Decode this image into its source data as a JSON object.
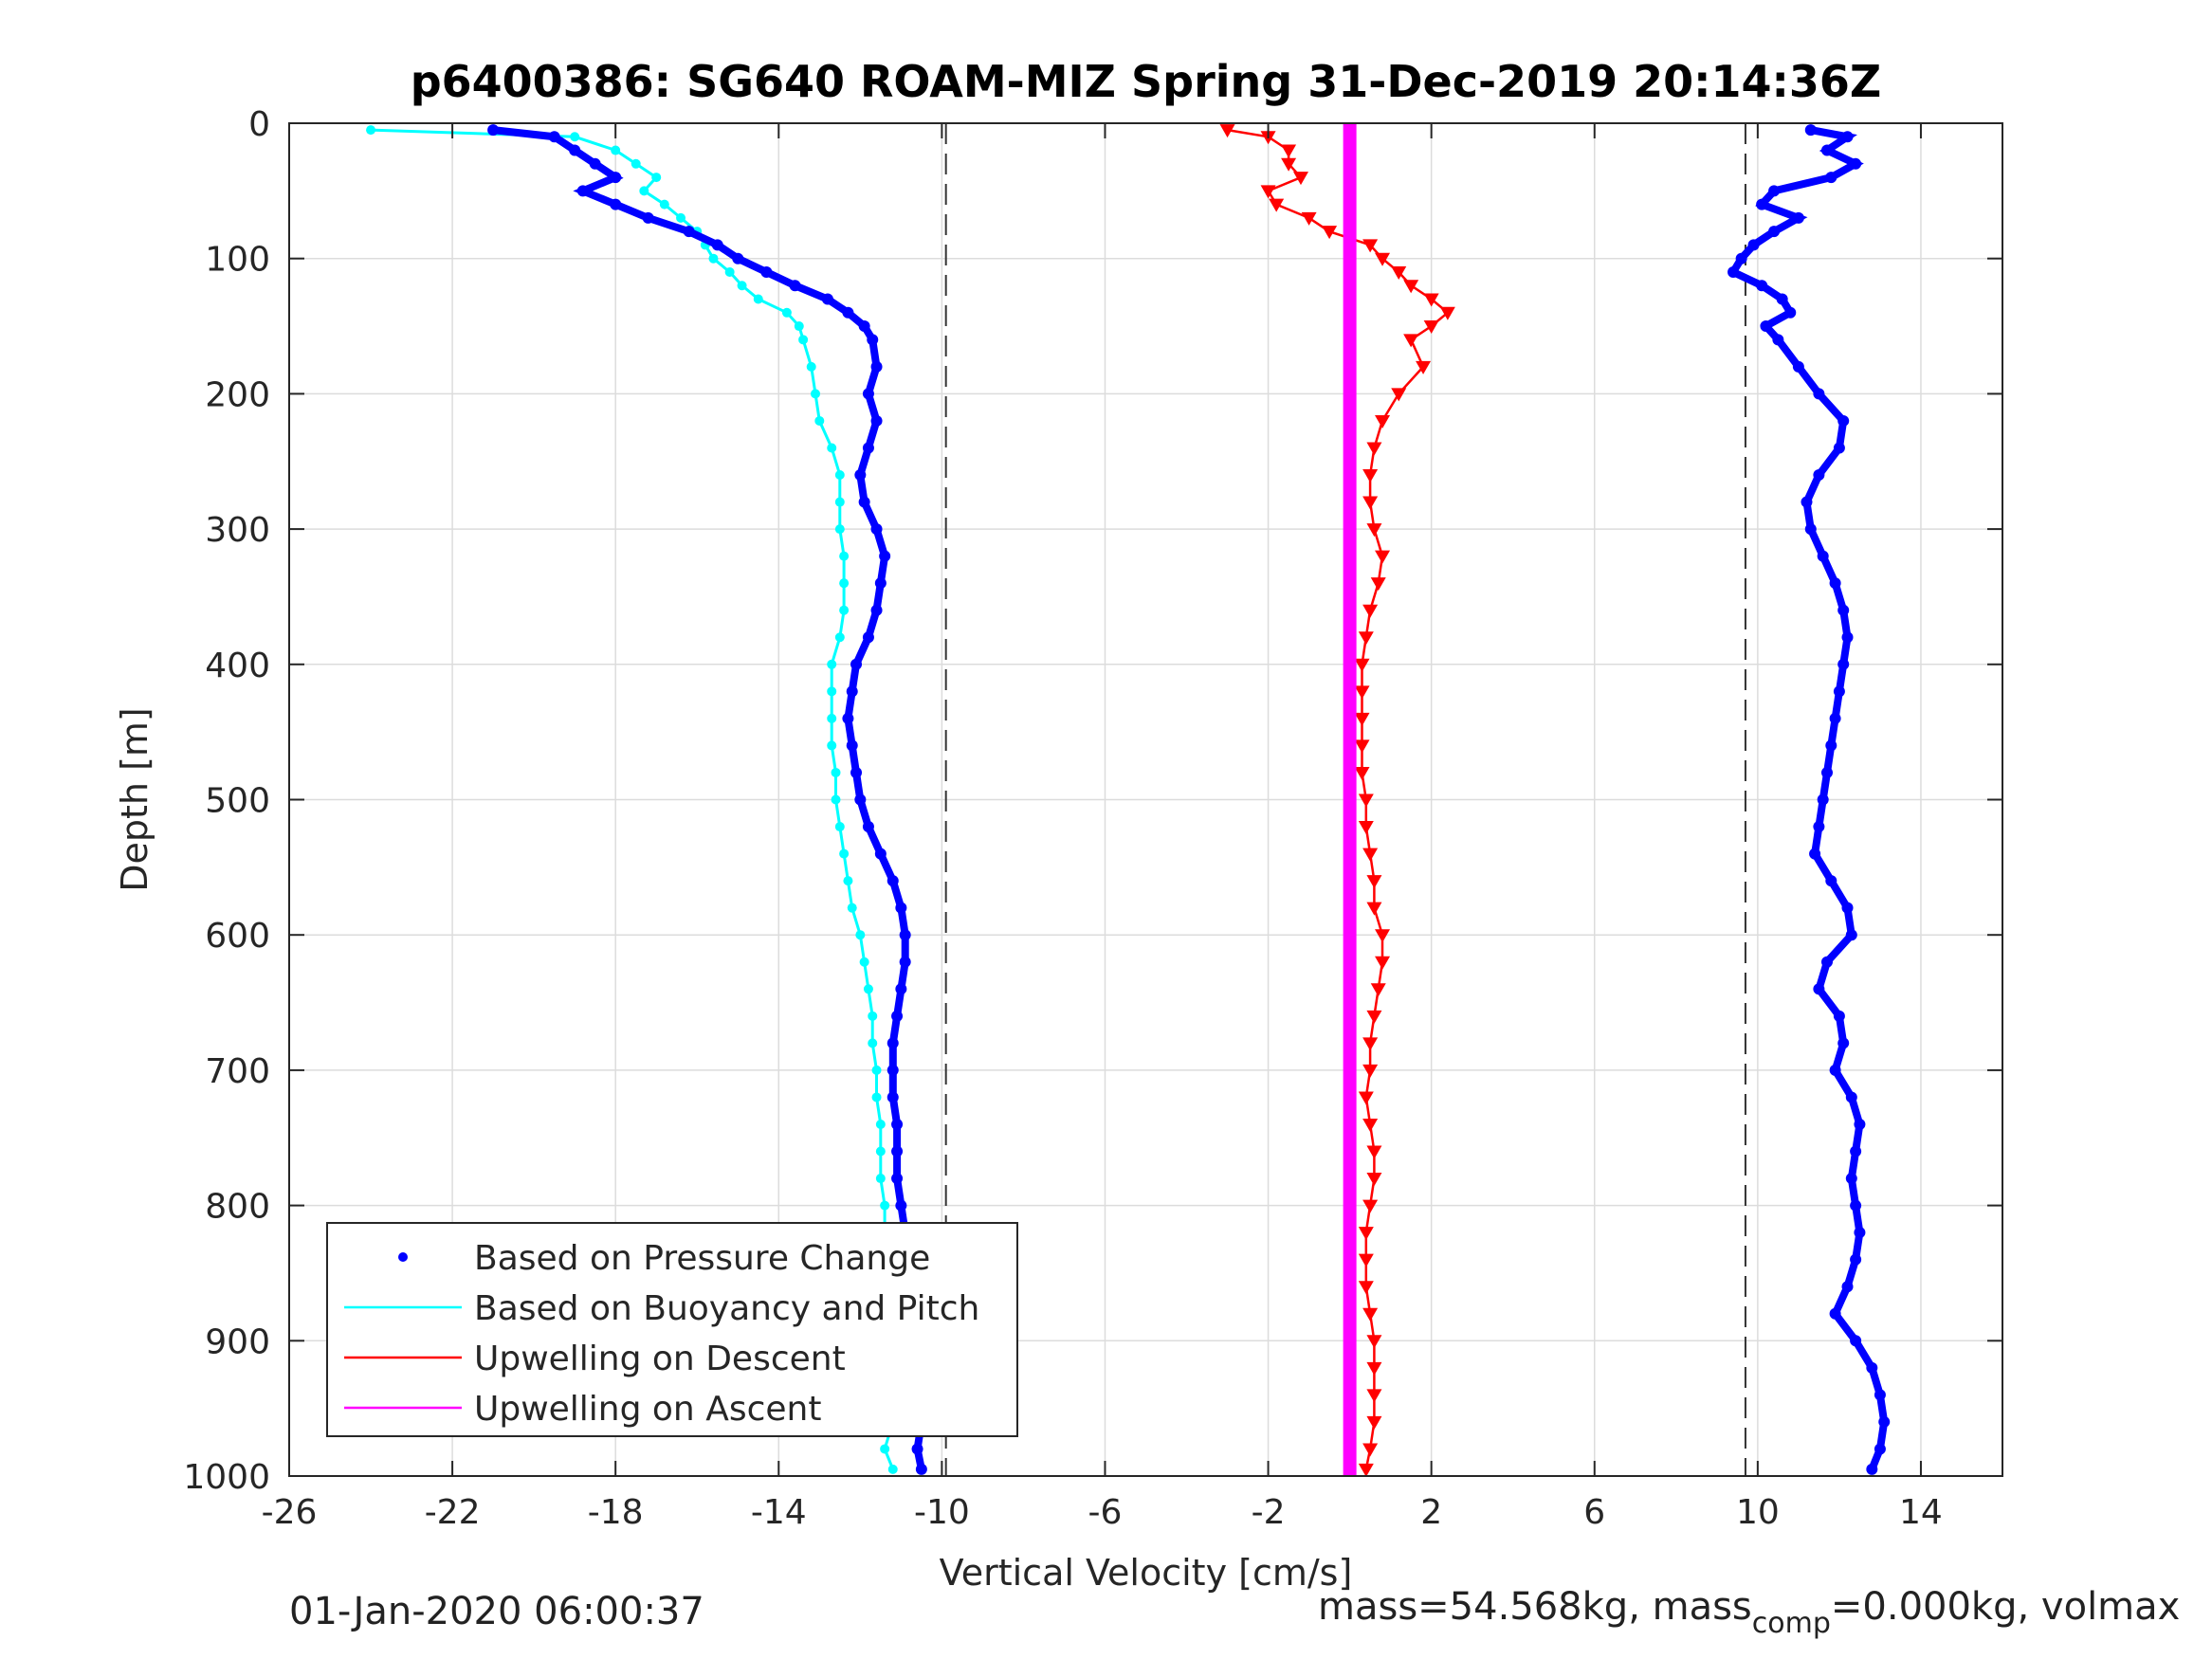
{
  "chart_data": {
    "type": "scatter",
    "title": "p6400386: SG640 ROAM-MIZ Spring 31-Dec-2019 20:14:36Z",
    "xlabel": "Vertical Velocity [cm/s]",
    "ylabel": "Depth [m]",
    "xlim": [
      -26,
      16
    ],
    "ylim": [
      0,
      1000
    ],
    "y_reversed": true,
    "grid": true,
    "x_ticks": [
      -26,
      -22,
      -18,
      -14,
      -10,
      -6,
      -2,
      2,
      6,
      10,
      14
    ],
    "y_ticks": [
      0,
      100,
      200,
      300,
      400,
      500,
      600,
      700,
      800,
      900,
      1000
    ],
    "legend_position": "bottom-left",
    "reference_lines": [
      -9.9,
      9.7
    ],
    "series": [
      {
        "name": "Based on Pressure Change",
        "color": "#0000ff",
        "marker": "dot",
        "depth": [
          5,
          10,
          20,
          30,
          40,
          50,
          60,
          70,
          80,
          90,
          100,
          110,
          120,
          130,
          140,
          150,
          160,
          180,
          200,
          220,
          240,
          260,
          280,
          300,
          320,
          340,
          360,
          380,
          400,
          420,
          440,
          460,
          480,
          500,
          520,
          540,
          560,
          580,
          600,
          620,
          640,
          660,
          680,
          700,
          720,
          740,
          760,
          780,
          800,
          820,
          840,
          860,
          880,
          900,
          920,
          940,
          960,
          980,
          995
        ],
        "descent_velocity": [
          -21.0,
          -19.5,
          -19.0,
          -18.5,
          -18.0,
          -18.8,
          -18.0,
          -17.2,
          -16.2,
          -15.5,
          -15.0,
          -14.3,
          -13.6,
          -12.8,
          -12.3,
          -11.9,
          -11.7,
          -11.6,
          -11.8,
          -11.6,
          -11.8,
          -12.0,
          -11.9,
          -11.6,
          -11.4,
          -11.5,
          -11.6,
          -11.8,
          -12.1,
          -12.2,
          -12.3,
          -12.2,
          -12.1,
          -12.0,
          -11.8,
          -11.5,
          -11.2,
          -11.0,
          -10.9,
          -10.9,
          -11.0,
          -11.1,
          -11.2,
          -11.2,
          -11.2,
          -11.1,
          -11.1,
          -11.1,
          -11.0,
          -10.9,
          -10.8,
          -10.7,
          -10.6,
          -10.6,
          -10.5,
          -10.4,
          -10.5,
          -10.6,
          -10.5
        ],
        "ascent_velocity": [
          11.3,
          12.2,
          11.7,
          12.4,
          11.8,
          10.4,
          10.1,
          11.0,
          10.4,
          9.9,
          9.6,
          9.4,
          10.1,
          10.6,
          10.8,
          10.2,
          10.5,
          11.0,
          11.5,
          12.1,
          12.0,
          11.5,
          11.2,
          11.3,
          11.6,
          11.9,
          12.1,
          12.2,
          12.1,
          12.0,
          11.9,
          11.8,
          11.7,
          11.6,
          11.5,
          11.4,
          11.8,
          12.2,
          12.3,
          11.7,
          11.5,
          12.0,
          12.1,
          11.9,
          12.3,
          12.5,
          12.4,
          12.3,
          12.4,
          12.5,
          12.4,
          12.2,
          11.9,
          12.4,
          12.8,
          13.0,
          13.1,
          13.0,
          12.8
        ]
      },
      {
        "name": "Based on Buoyancy and Pitch",
        "color": "#00ffff",
        "marker": "line",
        "depth": [
          5,
          10,
          20,
          30,
          40,
          50,
          60,
          70,
          80,
          90,
          100,
          110,
          120,
          130,
          140,
          150,
          160,
          180,
          200,
          220,
          240,
          260,
          280,
          300,
          320,
          340,
          360,
          380,
          400,
          420,
          440,
          460,
          480,
          500,
          520,
          540,
          560,
          580,
          600,
          620,
          640,
          660,
          680,
          700,
          720,
          740,
          760,
          780,
          800,
          820,
          840,
          860,
          880,
          900,
          920,
          940,
          960,
          980,
          995
        ],
        "values": [
          -24.0,
          -19.0,
          -18.0,
          -17.5,
          -17.0,
          -17.3,
          -16.8,
          -16.4,
          -16.0,
          -15.8,
          -15.6,
          -15.2,
          -14.9,
          -14.5,
          -13.8,
          -13.5,
          -13.4,
          -13.2,
          -13.1,
          -13.0,
          -12.7,
          -12.5,
          -12.5,
          -12.5,
          -12.4,
          -12.4,
          -12.4,
          -12.5,
          -12.7,
          -12.7,
          -12.7,
          -12.7,
          -12.6,
          -12.6,
          -12.5,
          -12.4,
          -12.3,
          -12.2,
          -12.0,
          -11.9,
          -11.8,
          -11.7,
          -11.7,
          -11.6,
          -11.6,
          -11.5,
          -11.5,
          -11.5,
          -11.4,
          -11.4,
          -11.3,
          -11.3,
          -11.2,
          -11.2,
          -11.1,
          -11.1,
          -11.2,
          -11.4,
          -11.2
        ]
      },
      {
        "name": "Upwelling on Descent",
        "color": "#ff0000",
        "marker": "triangle-down",
        "depth": [
          5,
          10,
          20,
          30,
          40,
          50,
          60,
          70,
          80,
          90,
          100,
          110,
          120,
          130,
          140,
          150,
          160,
          180,
          200,
          220,
          240,
          260,
          280,
          300,
          320,
          340,
          360,
          380,
          400,
          420,
          440,
          460,
          480,
          500,
          520,
          540,
          560,
          580,
          600,
          620,
          640,
          660,
          680,
          700,
          720,
          740,
          760,
          780,
          800,
          820,
          840,
          860,
          880,
          900,
          920,
          940,
          960,
          980,
          995
        ],
        "values": [
          -3.0,
          -2.0,
          -1.5,
          -1.5,
          -1.2,
          -2.0,
          -1.8,
          -1.0,
          -0.5,
          0.5,
          0.8,
          1.2,
          1.5,
          2.0,
          2.4,
          2.0,
          1.5,
          1.8,
          1.2,
          0.8,
          0.6,
          0.5,
          0.5,
          0.6,
          0.8,
          0.7,
          0.5,
          0.4,
          0.3,
          0.3,
          0.3,
          0.3,
          0.3,
          0.4,
          0.4,
          0.5,
          0.6,
          0.6,
          0.8,
          0.8,
          0.7,
          0.6,
          0.5,
          0.5,
          0.4,
          0.5,
          0.6,
          0.6,
          0.5,
          0.4,
          0.4,
          0.4,
          0.5,
          0.6,
          0.6,
          0.6,
          0.6,
          0.5,
          0.4
        ]
      },
      {
        "name": "Upwelling on Ascent",
        "color": "#ff00ff",
        "marker": "line",
        "depth": [
          0,
          1000
        ],
        "values": [
          0,
          0
        ]
      }
    ]
  },
  "footer": {
    "left": "01-Jan-2020 06:00:37",
    "right_prefix": "mass=54.568kg, mass",
    "right_sub": "comp",
    "right_suffix": "=0.000kg, volmax"
  }
}
